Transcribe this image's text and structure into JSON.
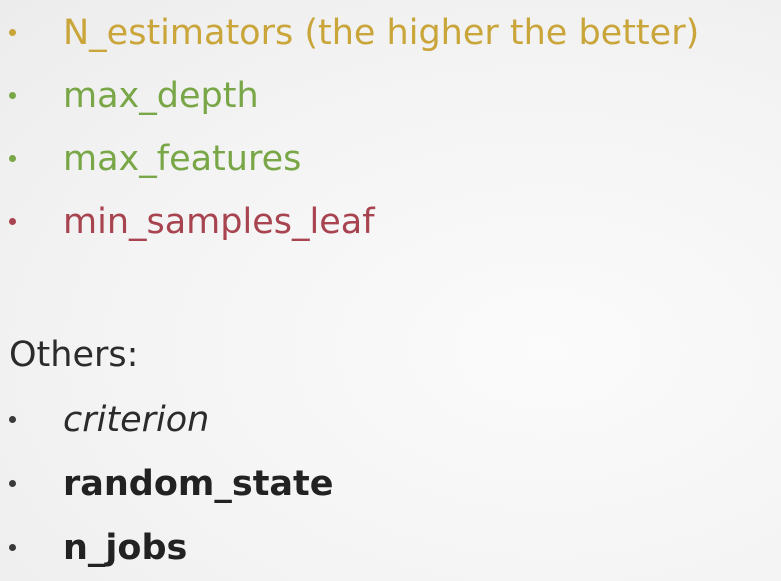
{
  "colors": {
    "gold": "#c9a53a",
    "green": "#79a646",
    "red": "#a84450",
    "dark": "#222222",
    "bullet_dark": "#3a3a3a"
  },
  "main_list": [
    {
      "text": "N_estimators (the higher the better)",
      "color": "gold"
    },
    {
      "text": "max_depth",
      "color": "green"
    },
    {
      "text": "max_features",
      "color": "green"
    },
    {
      "text": "min_samples_leaf",
      "color": "red"
    }
  ],
  "others": {
    "heading": "Others:",
    "items": [
      {
        "text": "criterion",
        "style": "italic"
      },
      {
        "text": "random_state",
        "style": "bold"
      },
      {
        "text": "n_jobs",
        "style": "bold"
      }
    ]
  }
}
